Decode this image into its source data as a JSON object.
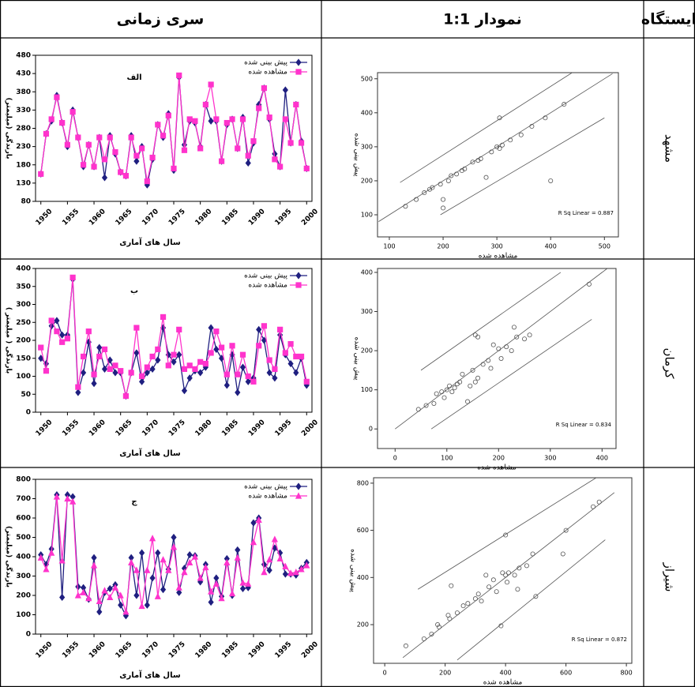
{
  "table": {
    "headers": [
      "ایستگاه",
      "نمودار 1:1",
      "سری زمانی"
    ],
    "rows": [
      {
        "station": "مشهد"
      },
      {
        "station": "کرمان"
      },
      {
        "station": "شیراز"
      }
    ]
  },
  "chart_data": [
    {
      "type": "scatter",
      "xlabel": "مشاهده شده",
      "ylabel": "پیش بینی شده",
      "annotation": "R Sq Linear = 0.887",
      "color": "#555555",
      "x": [
        130,
        150,
        165,
        175,
        180,
        195,
        200,
        200,
        210,
        215,
        225,
        235,
        240,
        255,
        265,
        270,
        280,
        290,
        300,
        305,
        305,
        310,
        325,
        345,
        365,
        390,
        400,
        425
      ],
      "values": [
        125,
        145,
        165,
        175,
        180,
        190,
        120,
        145,
        200,
        215,
        220,
        230,
        235,
        255,
        260,
        265,
        210,
        285,
        300,
        295,
        385,
        305,
        320,
        335,
        360,
        385,
        200,
        425
      ],
      "xlim": [
        78,
        526
      ],
      "ylim": [
        35,
        518
      ],
      "xticks": [
        100,
        200,
        300,
        400,
        500
      ],
      "yticks": [
        100,
        200,
        300,
        400,
        500
      ],
      "reference_lines": [
        {
          "x": [
            120,
            440
          ],
          "values": [
            195,
            518
          ]
        },
        {
          "x": [
            80,
            515
          ],
          "values": [
            80,
            515
          ]
        },
        {
          "x": [
            195,
            500
          ],
          "values": [
            100,
            385
          ]
        }
      ]
    },
    {
      "type": "line",
      "annotation": "الف",
      "xlabel": "سال های آماری",
      "ylabel": "بارندگی (میلیمتر)",
      "legend": "upper right",
      "x": [
        1950,
        1951,
        1952,
        1953,
        1954,
        1955,
        1956,
        1957,
        1958,
        1959,
        1960,
        1961,
        1962,
        1963,
        1964,
        1965,
        1966,
        1967,
        1968,
        1969,
        1970,
        1971,
        1972,
        1973,
        1974,
        1975,
        1976,
        1977,
        1978,
        1979,
        1980,
        1981,
        1982,
        1983,
        1984,
        1985,
        1986,
        1987,
        1988,
        1989,
        1990,
        1991,
        1992,
        1993,
        1994,
        1995,
        1996,
        1997,
        1998,
        1999,
        2000
      ],
      "xlim": [
        1949,
        2001
      ],
      "xticks": [
        1950,
        1955,
        1960,
        1965,
        1970,
        1975,
        1980,
        1985,
        1990,
        1995,
        2000
      ],
      "ylim": [
        80,
        480
      ],
      "yticks": [
        80,
        130,
        180,
        230,
        280,
        330,
        380,
        430,
        480
      ],
      "series": [
        {
          "name": "پیش بینی شده",
          "color": "#1f1f80",
          "marker": "diamond",
          "values": [
            155,
            265,
            300,
            370,
            295,
            230,
            330,
            255,
            175,
            235,
            175,
            255,
            145,
            260,
            210,
            160,
            150,
            260,
            190,
            230,
            125,
            195,
            290,
            255,
            320,
            165,
            420,
            235,
            300,
            295,
            230,
            345,
            300,
            300,
            190,
            290,
            305,
            225,
            310,
            185,
            240,
            345,
            390,
            305,
            210,
            175,
            385,
            240,
            345,
            245,
            170
          ]
        },
        {
          "name": "مشاهده شده",
          "color": "#ff33cc",
          "marker": "square",
          "values": [
            155,
            265,
            305,
            365,
            295,
            235,
            325,
            255,
            180,
            235,
            175,
            255,
            195,
            255,
            215,
            160,
            150,
            255,
            205,
            225,
            135,
            200,
            290,
            260,
            315,
            170,
            425,
            220,
            305,
            300,
            225,
            345,
            400,
            305,
            190,
            295,
            305,
            225,
            305,
            205,
            245,
            335,
            390,
            310,
            195,
            175,
            305,
            240,
            345,
            240,
            170
          ]
        }
      ]
    },
    {
      "type": "scatter",
      "xlabel": "مشاهده شده",
      "ylabel": "پیش بینی شده",
      "annotation": "R Sq Linear = 0.834",
      "color": "#555555",
      "x": [
        45,
        60,
        75,
        80,
        90,
        95,
        100,
        105,
        110,
        115,
        120,
        125,
        130,
        140,
        145,
        150,
        155,
        160,
        170,
        180,
        185,
        190,
        200,
        205,
        215,
        225,
        230,
        235,
        250,
        160,
        155,
        260,
        375
      ],
      "values": [
        50,
        60,
        65,
        90,
        95,
        80,
        100,
        110,
        95,
        105,
        115,
        120,
        140,
        70,
        110,
        150,
        120,
        130,
        165,
        175,
        155,
        215,
        205,
        180,
        210,
        200,
        260,
        235,
        230,
        235,
        240,
        240,
        370
      ],
      "xlim": [
        -34,
        427
      ],
      "ylim": [
        -50,
        410
      ],
      "xticks": [
        0,
        100,
        200,
        300,
        400
      ],
      "yticks": [
        0,
        100,
        200,
        300,
        400
      ],
      "reference_lines": [
        {
          "x": [
            50,
            320
          ],
          "values": [
            150,
            400
          ]
        },
        {
          "x": [
            0,
            410
          ],
          "values": [
            0,
            410
          ]
        },
        {
          "x": [
            70,
            380
          ],
          "values": [
            0,
            280
          ]
        }
      ]
    },
    {
      "type": "line",
      "annotation": "ب",
      "xlabel": "سال های آماری",
      "ylabel": "بارندگی ( میلیمتر )",
      "legend": "upper right",
      "x": [
        1950,
        1951,
        1952,
        1953,
        1954,
        1955,
        1956,
        1957,
        1958,
        1959,
        1960,
        1961,
        1962,
        1963,
        1964,
        1965,
        1966,
        1967,
        1968,
        1969,
        1970,
        1971,
        1972,
        1973,
        1974,
        1975,
        1976,
        1977,
        1978,
        1979,
        1980,
        1981,
        1982,
        1983,
        1984,
        1985,
        1986,
        1987,
        1988,
        1989,
        1990,
        1991,
        1992,
        1993,
        1994,
        1995,
        1996,
        1997,
        1998,
        1999,
        2000
      ],
      "xlim": [
        1949,
        2001
      ],
      "xticks": [
        1950,
        1955,
        1960,
        1965,
        1970,
        1975,
        1980,
        1985,
        1990,
        1995,
        2000
      ],
      "ylim": [
        0,
        400
      ],
      "yticks": [
        0,
        50,
        100,
        150,
        200,
        250,
        300,
        350,
        400
      ],
      "series": [
        {
          "name": "پیش بینی شده",
          "color": "#1f1f80",
          "marker": "diamond",
          "values": [
            150,
            135,
            240,
            255,
            215,
            215,
            370,
            55,
            110,
            195,
            80,
            180,
            120,
            145,
            110,
            110,
            45,
            110,
            165,
            85,
            110,
            120,
            145,
            235,
            160,
            140,
            160,
            60,
            95,
            115,
            110,
            125,
            235,
            175,
            150,
            75,
            160,
            55,
            125,
            85,
            95,
            230,
            200,
            110,
            95,
            215,
            160,
            135,
            110,
            150,
            75
          ]
        },
        {
          "name": "مشاهده شده",
          "color": "#ff33cc",
          "marker": "square",
          "values": [
            180,
            115,
            255,
            225,
            195,
            205,
            375,
            70,
            155,
            225,
            105,
            155,
            175,
            120,
            130,
            115,
            45,
            110,
            235,
            100,
            125,
            155,
            175,
            265,
            130,
            160,
            230,
            120,
            130,
            120,
            140,
            135,
            165,
            225,
            180,
            105,
            185,
            105,
            160,
            100,
            85,
            185,
            240,
            145,
            120,
            230,
            165,
            190,
            155,
            155,
            85
          ]
        }
      ]
    },
    {
      "type": "scatter",
      "xlabel": "مشاهده شده",
      "ylabel": "پیش بینی شده",
      "annotation": "R Sq Linear = 0.872",
      "color": "#555555",
      "x": [
        70,
        130,
        155,
        175,
        180,
        210,
        215,
        220,
        240,
        260,
        275,
        300,
        310,
        320,
        335,
        345,
        360,
        370,
        385,
        390,
        400,
        405,
        410,
        430,
        440,
        445,
        470,
        490,
        500,
        590,
        600,
        690,
        710,
        400
      ],
      "values": [
        110,
        140,
        160,
        200,
        190,
        240,
        225,
        365,
        250,
        280,
        290,
        310,
        330,
        300,
        410,
        360,
        390,
        340,
        195,
        420,
        410,
        380,
        420,
        410,
        350,
        440,
        450,
        500,
        320,
        500,
        600,
        700,
        720,
        580
      ],
      "xlim": [
        -37,
        818
      ],
      "ylim": [
        36,
        823
      ],
      "xticks": [
        0,
        200,
        400,
        600,
        800
      ],
      "yticks": [
        200,
        400,
        600,
        800
      ],
      "reference_lines": [
        {
          "x": [
            110,
            700
          ],
          "values": [
            350,
            823
          ]
        },
        {
          "x": [
            60,
            760
          ],
          "values": [
            60,
            760
          ]
        },
        {
          "x": [
            240,
            730
          ],
          "values": [
            50,
            560
          ]
        }
      ]
    },
    {
      "type": "line",
      "annotation": "ج",
      "xlabel": "سال های آماری",
      "ylabel": "بارندگی (میلیمتر)",
      "legend": "upper right",
      "x": [
        1950,
        1951,
        1952,
        1953,
        1954,
        1955,
        1956,
        1957,
        1958,
        1959,
        1960,
        1961,
        1962,
        1963,
        1964,
        1965,
        1966,
        1967,
        1968,
        1969,
        1970,
        1971,
        1972,
        1973,
        1974,
        1975,
        1976,
        1977,
        1978,
        1979,
        1980,
        1981,
        1982,
        1983,
        1984,
        1985,
        1986,
        1987,
        1988,
        1989,
        1990,
        1991,
        1992,
        1993,
        1994,
        1995,
        1996,
        1997,
        1998,
        1999,
        2000
      ],
      "xlim": [
        1949,
        2001
      ],
      "xticks": [
        1950,
        1955,
        1960,
        1965,
        1970,
        1975,
        1980,
        1985,
        1990,
        1995,
        2000
      ],
      "ylim": [
        0,
        800
      ],
      "yticks": [
        0,
        100,
        200,
        300,
        400,
        500,
        600,
        700,
        800
      ],
      "series": [
        {
          "name": "پیش بینی شده",
          "color": "#1f1f80",
          "marker": "diamond",
          "values": [
            410,
            360,
            440,
            720,
            190,
            720,
            710,
            245,
            240,
            180,
            395,
            115,
            215,
            235,
            255,
            150,
            95,
            395,
            200,
            420,
            150,
            290,
            420,
            230,
            335,
            500,
            215,
            340,
            410,
            405,
            270,
            360,
            165,
            290,
            195,
            390,
            200,
            435,
            235,
            240,
            575,
            600,
            360,
            330,
            445,
            420,
            310,
            310,
            305,
            340,
            370
          ]
        },
        {
          "name": "مشاهده شده",
          "color": "#ff33cc",
          "marker": "triangle",
          "values": [
            395,
            335,
            420,
            710,
            380,
            700,
            685,
            200,
            215,
            185,
            355,
            170,
            225,
            190,
            240,
            200,
            115,
            370,
            330,
            145,
            330,
            495,
            195,
            385,
            330,
            450,
            240,
            320,
            370,
            400,
            290,
            345,
            220,
            260,
            185,
            370,
            210,
            395,
            265,
            260,
            475,
            590,
            320,
            385,
            490,
            390,
            350,
            315,
            320,
            335,
            355
          ]
        }
      ]
    }
  ]
}
